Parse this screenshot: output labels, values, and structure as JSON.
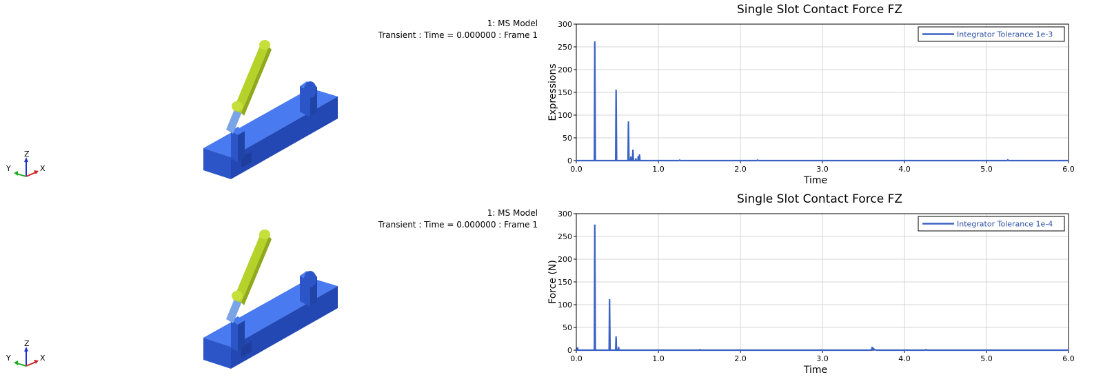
{
  "viewports": [
    {
      "model_label": "1: MS Model",
      "frame_info": "Transient : Time = 0.000000 : Frame 1",
      "triad": {
        "z": "Z",
        "y": "Y",
        "x": "X"
      }
    },
    {
      "model_label": "1: MS Model",
      "frame_info": "Transient : Time = 0.000000 : Frame 1",
      "triad": {
        "z": "Z",
        "y": "Y",
        "x": "X"
      }
    }
  ],
  "colors": {
    "series": "#3a62c4",
    "model_base": "#2f5ad6",
    "model_arm": "#b5d22a",
    "grid": "#d4d4d4",
    "axis": "#000000"
  },
  "chart_data": [
    {
      "type": "line",
      "title": "Single Slot Contact Force FZ",
      "xlabel": "Time",
      "ylabel": "Expressions",
      "xlim": [
        0,
        6.0
      ],
      "ylim": [
        0,
        300
      ],
      "x_ticks": [
        "0.0",
        "1.0",
        "2.0",
        "3.0",
        "4.0",
        "5.0",
        "6.0"
      ],
      "y_ticks": [
        "0",
        "50",
        "100",
        "150",
        "200",
        "250",
        "300"
      ],
      "grid": true,
      "legend_position": "top-right",
      "series": [
        {
          "name": "Integrator Tolerance 1e-3",
          "points": [
            [
              0,
              0
            ],
            [
              0.22,
              0
            ],
            [
              0.225,
              262
            ],
            [
              0.232,
              0
            ],
            [
              0.48,
              0
            ],
            [
              0.485,
              156
            ],
            [
              0.492,
              0
            ],
            [
              0.63,
              0
            ],
            [
              0.635,
              86
            ],
            [
              0.642,
              0
            ],
            [
              0.66,
              0
            ],
            [
              0.665,
              9
            ],
            [
              0.672,
              0
            ],
            [
              0.685,
              0
            ],
            [
              0.69,
              24
            ],
            [
              0.697,
              0
            ],
            [
              0.72,
              0
            ],
            [
              0.725,
              5
            ],
            [
              0.73,
              0
            ],
            [
              0.75,
              0
            ],
            [
              0.755,
              10
            ],
            [
              0.76,
              0
            ],
            [
              0.765,
              0
            ],
            [
              0.77,
              14
            ],
            [
              0.776,
              0
            ],
            [
              1.25,
              0
            ],
            [
              1.26,
              1
            ],
            [
              1.27,
              0
            ],
            [
              2.2,
              0
            ],
            [
              2.21,
              1
            ],
            [
              2.22,
              0
            ],
            [
              5.25,
              0
            ],
            [
              5.26,
              1.5
            ],
            [
              5.27,
              0
            ],
            [
              6.0,
              0
            ]
          ]
        }
      ]
    },
    {
      "type": "line",
      "title": "Single Slot Contact Force FZ",
      "xlabel": "Time",
      "ylabel": "Force (N)",
      "xlim": [
        0,
        6.0
      ],
      "ylim": [
        0,
        300
      ],
      "x_ticks": [
        "0.0",
        "1.0",
        "2.0",
        "3.0",
        "4.0",
        "5.0",
        "6.0"
      ],
      "y_ticks": [
        "0",
        "50",
        "100",
        "150",
        "200",
        "250",
        "300"
      ],
      "grid": true,
      "legend_position": "top-right",
      "series": [
        {
          "name": "Integrator Tolerance 1e-4",
          "points": [
            [
              0,
              0
            ],
            [
              0.01,
              0
            ],
            [
              0.015,
              6
            ],
            [
              0.02,
              0
            ],
            [
              0.22,
              0
            ],
            [
              0.225,
              276
            ],
            [
              0.232,
              0
            ],
            [
              0.4,
              0
            ],
            [
              0.405,
              112
            ],
            [
              0.412,
              0
            ],
            [
              0.48,
              0
            ],
            [
              0.485,
              30
            ],
            [
              0.49,
              0
            ],
            [
              0.51,
              0
            ],
            [
              0.515,
              7
            ],
            [
              0.52,
              0
            ],
            [
              1.5,
              0
            ],
            [
              1.51,
              1
            ],
            [
              1.52,
              0
            ],
            [
              3.6,
              0
            ],
            [
              3.605,
              7
            ],
            [
              3.61,
              3
            ],
            [
              3.62,
              4
            ],
            [
              3.63,
              2
            ],
            [
              3.64,
              1
            ],
            [
              3.66,
              0
            ],
            [
              4.25,
              0
            ],
            [
              4.26,
              1
            ],
            [
              4.27,
              0
            ],
            [
              6.0,
              0
            ]
          ]
        }
      ]
    }
  ]
}
